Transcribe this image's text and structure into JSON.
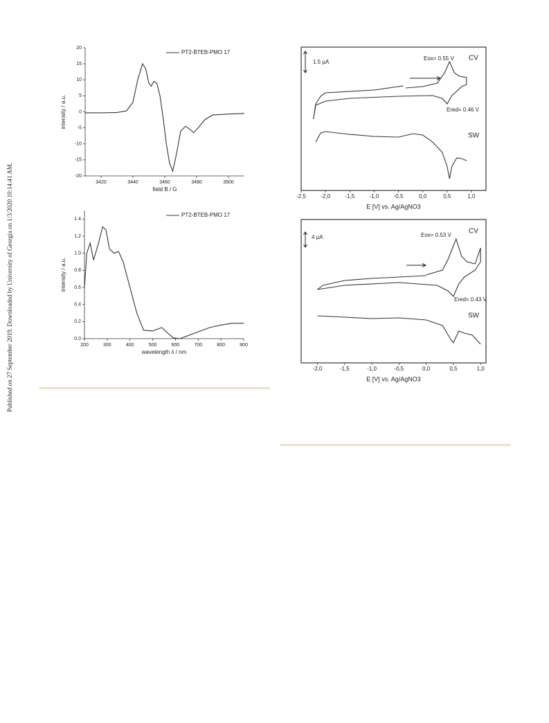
{
  "side_note": "Published on 27 September 2019. Downloaded by University of Georgia on 1/3/2020 10:14:41 AM.",
  "chart_data": [
    {
      "type": "line",
      "xlabel": "field B / G",
      "ylabel": "intensity / a.u.",
      "legend": "upper right",
      "xlim": [
        3410,
        3510
      ],
      "ylim": [
        -20,
        20
      ],
      "xticks": [
        3420,
        3440,
        3460,
        3480,
        3500
      ],
      "yticks": [
        -20,
        -15,
        -10,
        -5,
        0,
        5,
        10,
        15,
        20
      ],
      "series": [
        {
          "name": "PT2-BTEB-PMO 17",
          "color": "#333333",
          "x": [
            3410,
            3420,
            3430,
            3436,
            3440,
            3443,
            3446,
            3448,
            3450,
            3451.5,
            3453,
            3455,
            3457,
            3459,
            3461,
            3463,
            3465,
            3467,
            3470,
            3473,
            3476,
            3478,
            3481,
            3485,
            3490,
            3500,
            3510
          ],
          "values": [
            -0.3,
            -0.3,
            -0.2,
            0.3,
            3,
            10,
            15,
            13.5,
            9,
            8,
            9.5,
            9,
            5,
            -2,
            -10,
            -16,
            -18.5,
            -14,
            -6,
            -4.5,
            -5.5,
            -6.5,
            -5,
            -2.5,
            -1,
            -0.7,
            -0.5
          ]
        }
      ]
    },
    {
      "type": "line",
      "xlabel": "wavelength λ / nm",
      "ylabel": "intensity / a.u.",
      "legend": "upper right",
      "xlim": [
        200,
        900
      ],
      "ylim": [
        0,
        1.5
      ],
      "xticks": [
        200,
        300,
        400,
        500,
        600,
        700,
        800,
        900
      ],
      "yticks": [
        {
          "value": 0,
          "label": "0.0"
        },
        {
          "value": 0.2,
          "label": "0.2"
        },
        {
          "value": 0.4,
          "label": "0.4"
        },
        {
          "value": 0.6,
          "label": "0.6"
        },
        {
          "value": 0.8,
          "label": "0.8"
        },
        {
          "value": 1.0,
          "label": "1.0"
        },
        {
          "value": 1.2,
          "label": "1.2"
        },
        {
          "value": 1.4,
          "label": "1.4"
        }
      ],
      "series": [
        {
          "name": "PT2-BTEB-PMO 17",
          "color": "#333333",
          "x": [
            200,
            210,
            225,
            240,
            260,
            280,
            295,
            310,
            330,
            350,
            370,
            400,
            430,
            460,
            500,
            540,
            560,
            590,
            620,
            650,
            700,
            750,
            800,
            850,
            900
          ],
          "values": [
            0.6,
            1.0,
            1.12,
            0.92,
            1.1,
            1.31,
            1.27,
            1.05,
            1.0,
            1.02,
            0.9,
            0.6,
            0.3,
            0.1,
            0.09,
            0.13,
            0.08,
            0.01,
            0.0,
            0.03,
            0.08,
            0.13,
            0.16,
            0.18,
            0.18
          ]
        }
      ]
    },
    {
      "type": "line",
      "xlabel": "E [V] vs. Ag/AgNO3",
      "xlim": [
        -2.5,
        1.3
      ],
      "ylim": [
        0,
        207
      ],
      "xticks": [
        {
          "value": -2.5,
          "label": "-2,5"
        },
        {
          "value": -2.0,
          "label": "-2,0"
        },
        {
          "value": -1.5,
          "label": "-1,5"
        },
        {
          "value": -1.0,
          "label": "-1,0"
        },
        {
          "value": -0.5,
          "label": "-0,5"
        },
        {
          "value": 0.0,
          "label": "0,0"
        },
        {
          "value": 0.5,
          "label": "0,5"
        },
        {
          "value": 1.0,
          "label": "1,0"
        }
      ],
      "annotations": [
        "1.5 µA",
        "Eox= 0.55 V",
        "Ered= 0.46 V"
      ],
      "series": [
        {
          "name": "CV",
          "color": "#333333",
          "x": [
            -0.35,
            0.0,
            0.3,
            0.45,
            0.55,
            0.65,
            0.75,
            0.9,
            0.9,
            0.8,
            0.6,
            0.5,
            0.4,
            0.2,
            -0.5,
            -1.5,
            -2.0,
            -2.2,
            -2.25,
            -2.2,
            -2.1,
            -2.0,
            -1.0,
            -0.4
          ],
          "values": [
            148,
            150,
            155,
            170,
            186,
            170,
            165,
            163,
            153,
            150,
            137,
            125,
            133,
            137,
            136,
            133,
            129,
            123,
            103,
            125,
            136,
            141,
            145,
            151
          ]
        },
        {
          "name": "SW",
          "color": "#333333",
          "x": [
            -2.2,
            -2.1,
            -2.0,
            -1.5,
            -1.0,
            -0.5,
            -0.2,
            0.0,
            0.2,
            0.4,
            0.5,
            0.55,
            0.6,
            0.7,
            0.8,
            0.9
          ],
          "values": [
            70,
            83,
            85,
            81,
            78,
            77,
            82,
            80,
            70,
            55,
            35,
            17,
            35,
            47,
            46,
            43
          ]
        }
      ]
    },
    {
      "type": "line",
      "xlabel": "E [V] vs. Ag/AgNO3",
      "xlim": [
        -2.3,
        1.1
      ],
      "ylim": [
        0,
        207
      ],
      "xticks": [
        {
          "value": -2.0,
          "label": "-2,0"
        },
        {
          "value": -1.5,
          "label": "-1,5"
        },
        {
          "value": -1.0,
          "label": "-1,0"
        },
        {
          "value": -0.5,
          "label": "-0,5"
        },
        {
          "value": 0.0,
          "label": "0,0"
        },
        {
          "value": 0.5,
          "label": "0,5"
        },
        {
          "value": 1.0,
          "label": "1,0"
        }
      ],
      "annotations": [
        "4 µA",
        "Eox= 0.53 V",
        "Ered= 0.43 V"
      ],
      "series": [
        {
          "name": "CV",
          "color": "#333333",
          "x": [
            0.0,
            0.3,
            0.4,
            0.5,
            0.55,
            0.65,
            0.75,
            0.9,
            1.0,
            1.0,
            0.9,
            0.7,
            0.6,
            0.5,
            0.4,
            0.2,
            -0.5,
            -1.5,
            -2.0,
            -1.9,
            -1.5,
            -1.0,
            -0.5,
            0.0
          ],
          "values": [
            127,
            134,
            149,
            169,
            179,
            154,
            146,
            143,
            166,
            146,
            134,
            124,
            114,
            96,
            104,
            112,
            116,
            112,
            106,
            112,
            119,
            122,
            124,
            126
          ]
        },
        {
          "name": "SW",
          "color": "#333333",
          "x": [
            -2.0,
            -1.5,
            -1.0,
            -0.5,
            0.0,
            0.3,
            0.45,
            0.5,
            0.6,
            0.7,
            0.85,
            1.0
          ],
          "values": [
            68,
            66,
            64,
            65,
            62,
            54,
            34,
            29,
            46,
            43,
            40,
            27
          ]
        }
      ]
    }
  ]
}
